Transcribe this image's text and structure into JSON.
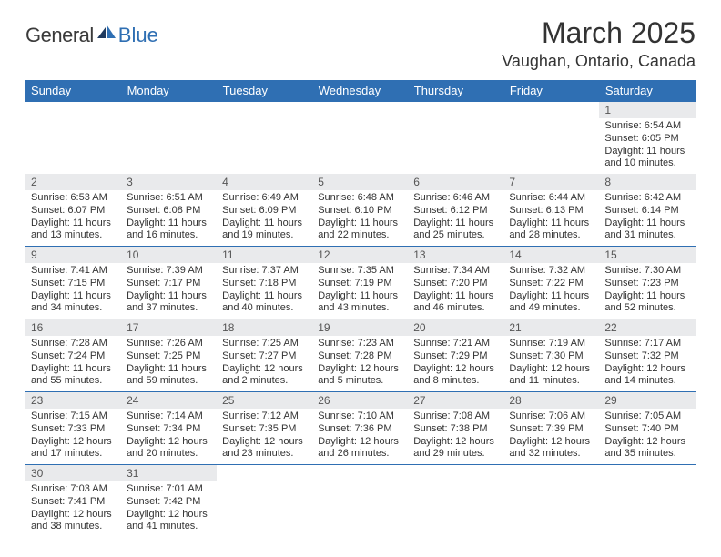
{
  "brand": {
    "text1": "General",
    "text2": "Blue"
  },
  "title": "March 2025",
  "location": "Vaughan, Ontario, Canada",
  "colors": {
    "accent": "#2f6fb3",
    "row_shade": "#e9eaec",
    "background": "#ffffff",
    "text": "#333333"
  },
  "typography": {
    "title_fontsize": 32,
    "location_fontsize": 18,
    "header_fontsize": 13,
    "daynum_fontsize": 12,
    "body_fontsize": 11
  },
  "day_headers": [
    "Sunday",
    "Monday",
    "Tuesday",
    "Wednesday",
    "Thursday",
    "Friday",
    "Saturday"
  ],
  "weeks": [
    [
      null,
      null,
      null,
      null,
      null,
      null,
      {
        "n": "1",
        "sunrise": "6:54 AM",
        "sunset": "6:05 PM",
        "dl_h": 11,
        "dl_m": 10
      }
    ],
    [
      {
        "n": "2",
        "sunrise": "6:53 AM",
        "sunset": "6:07 PM",
        "dl_h": 11,
        "dl_m": 13
      },
      {
        "n": "3",
        "sunrise": "6:51 AM",
        "sunset": "6:08 PM",
        "dl_h": 11,
        "dl_m": 16
      },
      {
        "n": "4",
        "sunrise": "6:49 AM",
        "sunset": "6:09 PM",
        "dl_h": 11,
        "dl_m": 19
      },
      {
        "n": "5",
        "sunrise": "6:48 AM",
        "sunset": "6:10 PM",
        "dl_h": 11,
        "dl_m": 22
      },
      {
        "n": "6",
        "sunrise": "6:46 AM",
        "sunset": "6:12 PM",
        "dl_h": 11,
        "dl_m": 25
      },
      {
        "n": "7",
        "sunrise": "6:44 AM",
        "sunset": "6:13 PM",
        "dl_h": 11,
        "dl_m": 28
      },
      {
        "n": "8",
        "sunrise": "6:42 AM",
        "sunset": "6:14 PM",
        "dl_h": 11,
        "dl_m": 31
      }
    ],
    [
      {
        "n": "9",
        "sunrise": "7:41 AM",
        "sunset": "7:15 PM",
        "dl_h": 11,
        "dl_m": 34
      },
      {
        "n": "10",
        "sunrise": "7:39 AM",
        "sunset": "7:17 PM",
        "dl_h": 11,
        "dl_m": 37
      },
      {
        "n": "11",
        "sunrise": "7:37 AM",
        "sunset": "7:18 PM",
        "dl_h": 11,
        "dl_m": 40
      },
      {
        "n": "12",
        "sunrise": "7:35 AM",
        "sunset": "7:19 PM",
        "dl_h": 11,
        "dl_m": 43
      },
      {
        "n": "13",
        "sunrise": "7:34 AM",
        "sunset": "7:20 PM",
        "dl_h": 11,
        "dl_m": 46
      },
      {
        "n": "14",
        "sunrise": "7:32 AM",
        "sunset": "7:22 PM",
        "dl_h": 11,
        "dl_m": 49
      },
      {
        "n": "15",
        "sunrise": "7:30 AM",
        "sunset": "7:23 PM",
        "dl_h": 11,
        "dl_m": 52
      }
    ],
    [
      {
        "n": "16",
        "sunrise": "7:28 AM",
        "sunset": "7:24 PM",
        "dl_h": 11,
        "dl_m": 55
      },
      {
        "n": "17",
        "sunrise": "7:26 AM",
        "sunset": "7:25 PM",
        "dl_h": 11,
        "dl_m": 59
      },
      {
        "n": "18",
        "sunrise": "7:25 AM",
        "sunset": "7:27 PM",
        "dl_h": 12,
        "dl_m": 2
      },
      {
        "n": "19",
        "sunrise": "7:23 AM",
        "sunset": "7:28 PM",
        "dl_h": 12,
        "dl_m": 5
      },
      {
        "n": "20",
        "sunrise": "7:21 AM",
        "sunset": "7:29 PM",
        "dl_h": 12,
        "dl_m": 8
      },
      {
        "n": "21",
        "sunrise": "7:19 AM",
        "sunset": "7:30 PM",
        "dl_h": 12,
        "dl_m": 11
      },
      {
        "n": "22",
        "sunrise": "7:17 AM",
        "sunset": "7:32 PM",
        "dl_h": 12,
        "dl_m": 14
      }
    ],
    [
      {
        "n": "23",
        "sunrise": "7:15 AM",
        "sunset": "7:33 PM",
        "dl_h": 12,
        "dl_m": 17
      },
      {
        "n": "24",
        "sunrise": "7:14 AM",
        "sunset": "7:34 PM",
        "dl_h": 12,
        "dl_m": 20
      },
      {
        "n": "25",
        "sunrise": "7:12 AM",
        "sunset": "7:35 PM",
        "dl_h": 12,
        "dl_m": 23
      },
      {
        "n": "26",
        "sunrise": "7:10 AM",
        "sunset": "7:36 PM",
        "dl_h": 12,
        "dl_m": 26
      },
      {
        "n": "27",
        "sunrise": "7:08 AM",
        "sunset": "7:38 PM",
        "dl_h": 12,
        "dl_m": 29
      },
      {
        "n": "28",
        "sunrise": "7:06 AM",
        "sunset": "7:39 PM",
        "dl_h": 12,
        "dl_m": 32
      },
      {
        "n": "29",
        "sunrise": "7:05 AM",
        "sunset": "7:40 PM",
        "dl_h": 12,
        "dl_m": 35
      }
    ],
    [
      {
        "n": "30",
        "sunrise": "7:03 AM",
        "sunset": "7:41 PM",
        "dl_h": 12,
        "dl_m": 38
      },
      {
        "n": "31",
        "sunrise": "7:01 AM",
        "sunset": "7:42 PM",
        "dl_h": 12,
        "dl_m": 41
      },
      null,
      null,
      null,
      null,
      null
    ]
  ]
}
